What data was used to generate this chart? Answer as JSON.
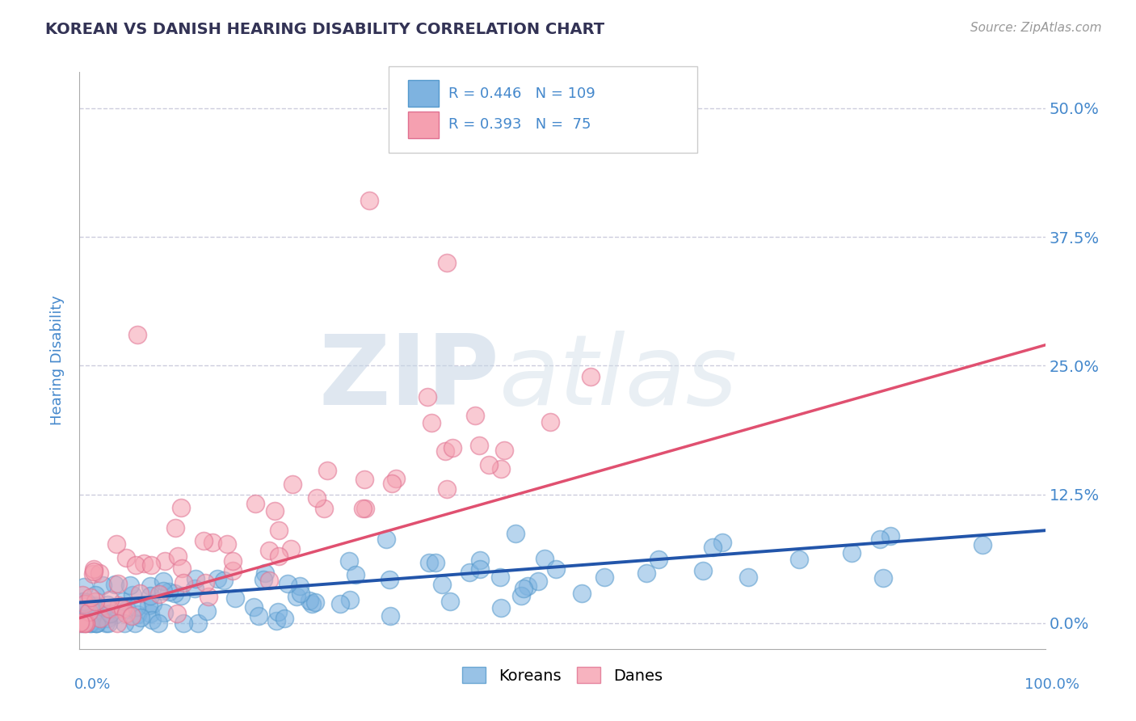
{
  "title": "KOREAN VS DANISH HEARING DISABILITY CORRELATION CHART",
  "source": "Source: ZipAtlas.com",
  "ylabel": "Hearing Disability",
  "korean_R": 0.446,
  "korean_N": 109,
  "danish_R": 0.393,
  "danish_N": 75,
  "korean_color": "#7EB3E0",
  "danish_color": "#F5A0B0",
  "korean_edge_color": "#5599CC",
  "danish_edge_color": "#E07090",
  "korean_line_color": "#2255AA",
  "danish_line_color": "#E05070",
  "background_color": "#FFFFFF",
  "title_color": "#333355",
  "axis_label_color": "#4488CC",
  "grid_color": "#CCCCDD",
  "ytick_labels": [
    "0.0%",
    "12.5%",
    "25.0%",
    "37.5%",
    "50.0%"
  ],
  "ytick_values": [
    0.0,
    0.125,
    0.25,
    0.375,
    0.5
  ],
  "xlim": [
    0.0,
    1.0
  ],
  "ylim": [
    -0.025,
    0.535
  ]
}
